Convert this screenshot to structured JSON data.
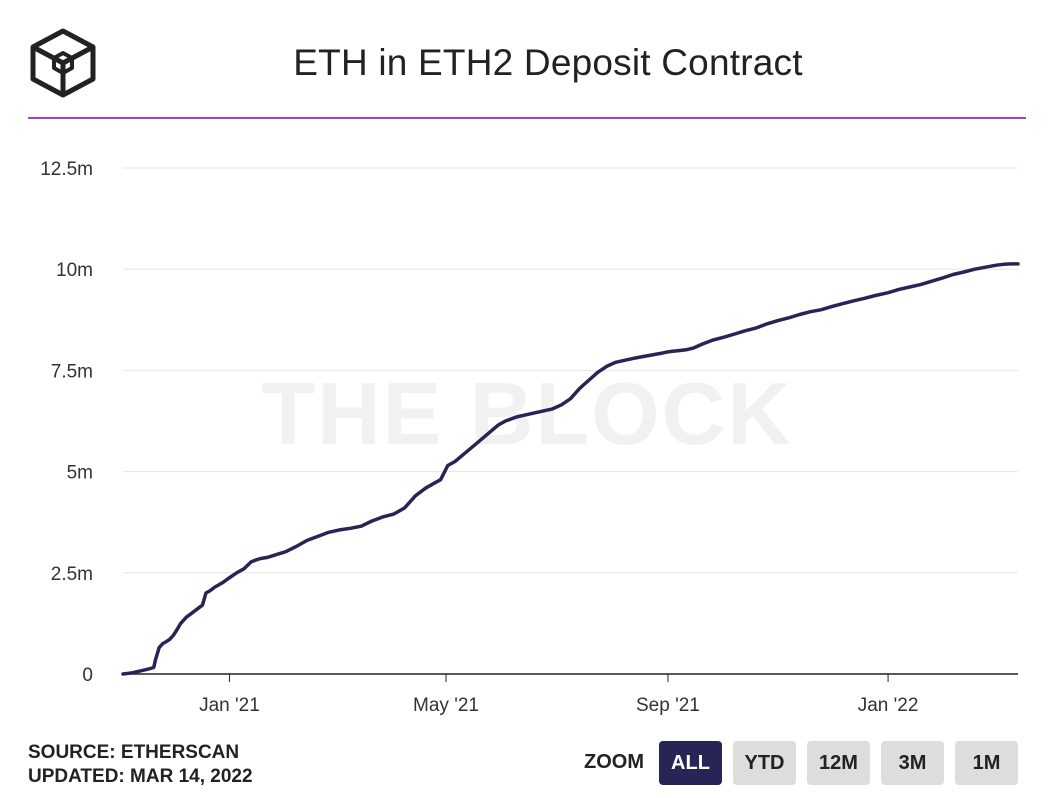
{
  "header": {
    "title": "ETH in ETH2 Deposit Contract",
    "logo_icon": "the-block-cube-logo",
    "rule_color": "#9a3cf0"
  },
  "footer": {
    "source": "SOURCE: ETHERSCAN",
    "updated": "UPDATED: MAR 14, 2022"
  },
  "zoom": {
    "label": "ZOOM",
    "buttons": [
      {
        "label": "ALL",
        "active": true
      },
      {
        "label": "YTD",
        "active": false
      },
      {
        "label": "12M",
        "active": false
      },
      {
        "label": "3M",
        "active": false
      },
      {
        "label": "1M",
        "active": false
      }
    ],
    "active_color": "#262556"
  },
  "watermark": "THE BLOCK",
  "chart_data": {
    "type": "line",
    "title": "ETH in ETH2 Deposit Contract",
    "xlabel": "",
    "ylabel": "",
    "ylim": [
      0,
      12500000
    ],
    "xlim": [
      "2020-11-03",
      "2022-03-14"
    ],
    "y_ticks": [
      0,
      2500000,
      5000000,
      7500000,
      10000000,
      12500000
    ],
    "y_tick_labels": [
      "0",
      "2.5m",
      "5m",
      "7.5m",
      "10m",
      "12.5m"
    ],
    "x_ticks": [
      "2021-01-01",
      "2021-05-01",
      "2021-09-01",
      "2022-01-01"
    ],
    "x_tick_labels": [
      "Jan '21",
      "May '21",
      "Sep '21",
      "Jan '22"
    ],
    "grid": true,
    "line_color": "#262556",
    "series": [
      {
        "x": [
          "2020-11-03",
          "2020-11-08",
          "2020-11-13",
          "2020-11-17",
          "2020-11-20",
          "2020-11-21",
          "2020-11-23",
          "2020-11-25",
          "2020-11-27",
          "2020-11-29",
          "2020-12-01",
          "2020-12-03",
          "2020-12-05",
          "2020-12-08",
          "2020-12-11",
          "2020-12-14",
          "2020-12-17",
          "2020-12-19",
          "2020-12-21",
          "2020-12-24",
          "2020-12-28",
          "2021-01-01",
          "2021-01-05",
          "2021-01-09",
          "2021-01-13",
          "2021-01-16",
          "2021-01-18",
          "2021-01-22",
          "2021-01-27",
          "2021-02-01",
          "2021-02-07",
          "2021-02-13",
          "2021-02-19",
          "2021-02-25",
          "2021-03-03",
          "2021-03-09",
          "2021-03-15",
          "2021-03-21",
          "2021-03-27",
          "2021-04-02",
          "2021-04-08",
          "2021-04-14",
          "2021-04-20",
          "2021-04-24",
          "2021-04-28",
          "2021-05-02",
          "2021-05-06",
          "2021-05-10",
          "2021-05-14",
          "2021-05-18",
          "2021-05-22",
          "2021-05-26",
          "2021-05-30",
          "2021-06-03",
          "2021-06-06",
          "2021-06-09",
          "2021-06-14",
          "2021-06-19",
          "2021-06-24",
          "2021-06-29",
          "2021-07-04",
          "2021-07-09",
          "2021-07-14",
          "2021-07-19",
          "2021-07-24",
          "2021-07-29",
          "2021-08-03",
          "2021-08-08",
          "2021-08-13",
          "2021-08-18",
          "2021-08-23",
          "2021-08-28",
          "2021-08-31",
          "2021-09-03",
          "2021-09-07",
          "2021-09-11",
          "2021-09-15",
          "2021-09-20",
          "2021-09-26",
          "2021-10-02",
          "2021-10-08",
          "2021-10-14",
          "2021-10-20",
          "2021-10-26",
          "2021-11-01",
          "2021-11-07",
          "2021-11-13",
          "2021-11-19",
          "2021-11-25",
          "2021-12-01",
          "2021-12-07",
          "2021-12-13",
          "2021-12-19",
          "2021-12-25",
          "2022-01-01",
          "2022-01-07",
          "2022-01-13",
          "2022-01-19",
          "2022-01-25",
          "2022-01-31",
          "2022-02-06",
          "2022-02-12",
          "2022-02-18",
          "2022-02-24",
          "2022-03-02",
          "2022-03-06",
          "2022-03-10",
          "2022-03-14"
        ],
        "y": [
          0,
          30000,
          80000,
          120000,
          160000,
          350000,
          650000,
          750000,
          800000,
          860000,
          960000,
          1100000,
          1250000,
          1400000,
          1500000,
          1600000,
          1700000,
          2000000,
          2050000,
          2150000,
          2250000,
          2380000,
          2500000,
          2600000,
          2770000,
          2820000,
          2850000,
          2880000,
          2950000,
          3020000,
          3150000,
          3300000,
          3400000,
          3500000,
          3560000,
          3600000,
          3650000,
          3780000,
          3880000,
          3950000,
          4100000,
          4400000,
          4600000,
          4700000,
          4800000,
          5150000,
          5250000,
          5400000,
          5550000,
          5700000,
          5850000,
          6000000,
          6150000,
          6250000,
          6300000,
          6350000,
          6400000,
          6450000,
          6500000,
          6550000,
          6650000,
          6800000,
          7050000,
          7250000,
          7450000,
          7600000,
          7700000,
          7750000,
          7800000,
          7840000,
          7880000,
          7920000,
          7950000,
          7970000,
          7990000,
          8010000,
          8050000,
          8150000,
          8250000,
          8320000,
          8400000,
          8480000,
          8550000,
          8650000,
          8730000,
          8800000,
          8880000,
          8950000,
          9000000,
          9080000,
          9150000,
          9220000,
          9280000,
          9350000,
          9420000,
          9500000,
          9560000,
          9620000,
          9700000,
          9780000,
          9870000,
          9930000,
          10000000,
          10050000,
          10100000,
          10120000,
          10130000,
          10130000
        ]
      }
    ]
  }
}
